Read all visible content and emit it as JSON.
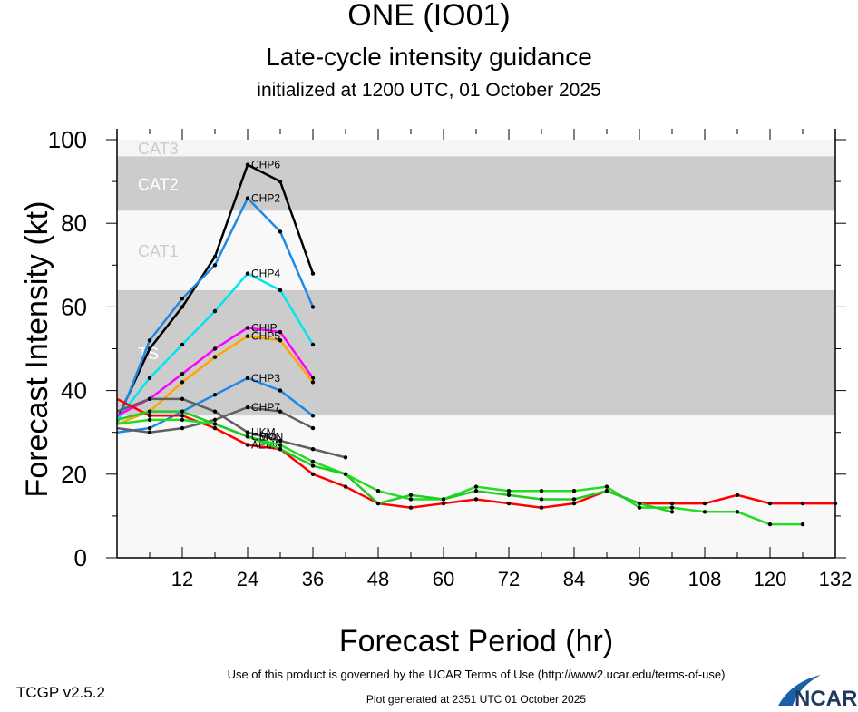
{
  "chart_data": {
    "type": "line",
    "title": "ONE (IO01)",
    "subtitle": "Late-cycle intensity guidance",
    "subtitle2": "initialized at 1200 UTC, 01 October 2025",
    "xlabel": "Forecast Period (hr)",
    "ylabel": "Forecast Intensity (kt)",
    "xlim": [
      0,
      132
    ],
    "ylim": [
      0,
      100
    ],
    "xticks": [
      12,
      24,
      36,
      48,
      60,
      72,
      84,
      96,
      108,
      120,
      132
    ],
    "yticks": [
      0,
      20,
      40,
      60,
      80,
      100
    ],
    "bands": [
      {
        "label": "CAT3",
        "from": 96,
        "to": 100,
        "color": "#f5f5f5",
        "textColor": "#cccccc"
      },
      {
        "label": "CAT2",
        "from": 83,
        "to": 96,
        "color": "#cccccc",
        "textColor": "#ffffff"
      },
      {
        "label": "CAT1",
        "from": 64,
        "to": 83,
        "color": "#f8f8f8",
        "textColor": "#cccccc"
      },
      {
        "label": "TS",
        "from": 34,
        "to": 64,
        "color": "#cccccc",
        "textColor": "#ffffff"
      },
      {
        "label": "",
        "from": 0,
        "to": 34,
        "color": "#f8f8f8",
        "textColor": "#cccccc"
      }
    ],
    "series": [
      {
        "name": "CHP6",
        "color": "#000000",
        "x": [
          0,
          6,
          12,
          18,
          24,
          30,
          36
        ],
        "y": [
          33,
          50,
          60,
          72,
          94,
          90,
          68
        ]
      },
      {
        "name": "CHP2",
        "color": "#1e88e5",
        "x": [
          0,
          6,
          12,
          18,
          24,
          30,
          36
        ],
        "y": [
          32,
          52,
          62,
          70,
          86,
          78,
          60
        ]
      },
      {
        "name": "CHP4",
        "color": "#00e5ee",
        "x": [
          0,
          6,
          12,
          18,
          24,
          30,
          36
        ],
        "y": [
          33,
          43,
          51,
          59,
          68,
          64,
          51
        ]
      },
      {
        "name": "CHIP",
        "color": "#ff00ff",
        "x": [
          0,
          6,
          12,
          18,
          24,
          30,
          36
        ],
        "y": [
          34,
          38,
          44,
          50,
          55,
          54,
          43
        ]
      },
      {
        "name": "CHP5",
        "color": "#ffa500",
        "x": [
          0,
          6,
          12,
          18,
          24,
          30,
          36
        ],
        "y": [
          32,
          35,
          42,
          48,
          53,
          52,
          42
        ]
      },
      {
        "name": "CHP3",
        "color": "#1e88e5",
        "x": [
          0,
          6,
          12,
          18,
          24,
          30,
          36
        ],
        "y": [
          30,
          31,
          35,
          39,
          43,
          40,
          34
        ]
      },
      {
        "name": "CHP7",
        "color": "#606060",
        "x": [
          0,
          6,
          12,
          18,
          24,
          30,
          36
        ],
        "y": [
          31,
          30,
          31,
          33,
          36,
          35,
          31
        ]
      },
      {
        "name": "UKM",
        "color": "#606060",
        "x": [
          0,
          6,
          12,
          18,
          24,
          30,
          36,
          42
        ],
        "y": [
          35,
          38,
          38,
          35,
          30,
          28,
          26,
          24
        ]
      },
      {
        "name": "AEMN",
        "color": "#ff0000",
        "x": [
          0,
          6,
          12,
          18,
          24,
          30,
          36,
          42,
          48,
          54,
          60,
          66,
          72,
          78,
          84,
          90,
          96,
          102,
          108,
          114,
          120,
          126,
          132
        ],
        "y": [
          38,
          34,
          34,
          31,
          27,
          26,
          20,
          17,
          13,
          12,
          13,
          14,
          13,
          12,
          13,
          16,
          13,
          13,
          13,
          15,
          13,
          13,
          13
        ]
      },
      {
        "name": "CEMN",
        "color": "#22dd22",
        "x": [
          0,
          6,
          12,
          18,
          24,
          30,
          36,
          42,
          48,
          54,
          60,
          66,
          72,
          78,
          84,
          90,
          96,
          102,
          108,
          114,
          120,
          126
        ],
        "y": [
          32,
          33,
          33,
          32,
          29,
          27,
          23,
          20,
          16,
          14,
          14,
          17,
          16,
          16,
          16,
          17,
          12,
          12,
          11,
          11,
          8,
          8
        ]
      },
      {
        "name": "CMO",
        "color": "#22cc22",
        "x": [
          0,
          6,
          12,
          18,
          24,
          30,
          36,
          42,
          48,
          54,
          60,
          66,
          72,
          78,
          84,
          90,
          96,
          102
        ],
        "y": [
          33,
          35,
          35,
          32,
          29,
          26,
          22,
          20,
          13,
          15,
          14,
          16,
          15,
          14,
          14,
          16,
          13,
          11
        ]
      }
    ]
  },
  "footer": {
    "terms": "Use of this product is governed by the UCAR Terms of Use (http://www2.ucar.edu/terms-of-use)",
    "version": "TCGP v2.5.2",
    "generated": "Plot generated at 2351 UTC   01 October 2025",
    "logo": "NCAR"
  }
}
